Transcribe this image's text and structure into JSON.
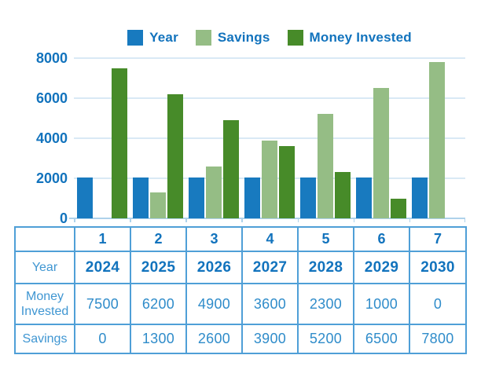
{
  "chart_data": {
    "type": "bar",
    "title": "",
    "categories": [
      "1",
      "2",
      "3",
      "4",
      "5",
      "6",
      "7"
    ],
    "series": [
      {
        "name": "Year",
        "color": "#187abf",
        "values": [
          2024,
          2025,
          2026,
          2027,
          2028,
          2029,
          2030
        ]
      },
      {
        "name": "Savings",
        "color": "#95bd85",
        "values": [
          0,
          1300,
          2600,
          3900,
          5200,
          6500,
          7800
        ]
      },
      {
        "name": "Money Invested",
        "color": "#478b29",
        "values": [
          7500,
          6200,
          4900,
          3600,
          2300,
          1000,
          0
        ]
      }
    ],
    "xlabel": "",
    "ylabel": "",
    "ylim": [
      0,
      8000
    ],
    "yticks": [
      0,
      2000,
      4000,
      6000,
      8000
    ],
    "grid": true,
    "legend_position": "top"
  },
  "table": {
    "column_headers": [
      "",
      "1",
      "2",
      "3",
      "4",
      "5",
      "6",
      "7"
    ],
    "rows": [
      {
        "label": "Year",
        "style": "bold",
        "values": [
          "2024",
          "2025",
          "2026",
          "2027",
          "2028",
          "2029",
          "2030"
        ]
      },
      {
        "label": "Money Invested",
        "style": "regular",
        "values": [
          "7500",
          "6200",
          "4900",
          "3600",
          "2300",
          "1000",
          "0"
        ]
      },
      {
        "label": "Savings",
        "style": "regular",
        "values": [
          "0",
          "1300",
          "2600",
          "3900",
          "5200",
          "6500",
          "7800"
        ]
      }
    ]
  },
  "colors": {
    "label_blue": "#1273bd",
    "value_blue": "#2f8cca",
    "rowlabel_blue": "#3f96d2",
    "table_border": "#4f9fd7",
    "gridline": "#d9e9f5",
    "axis_line": "#aed2eb"
  }
}
